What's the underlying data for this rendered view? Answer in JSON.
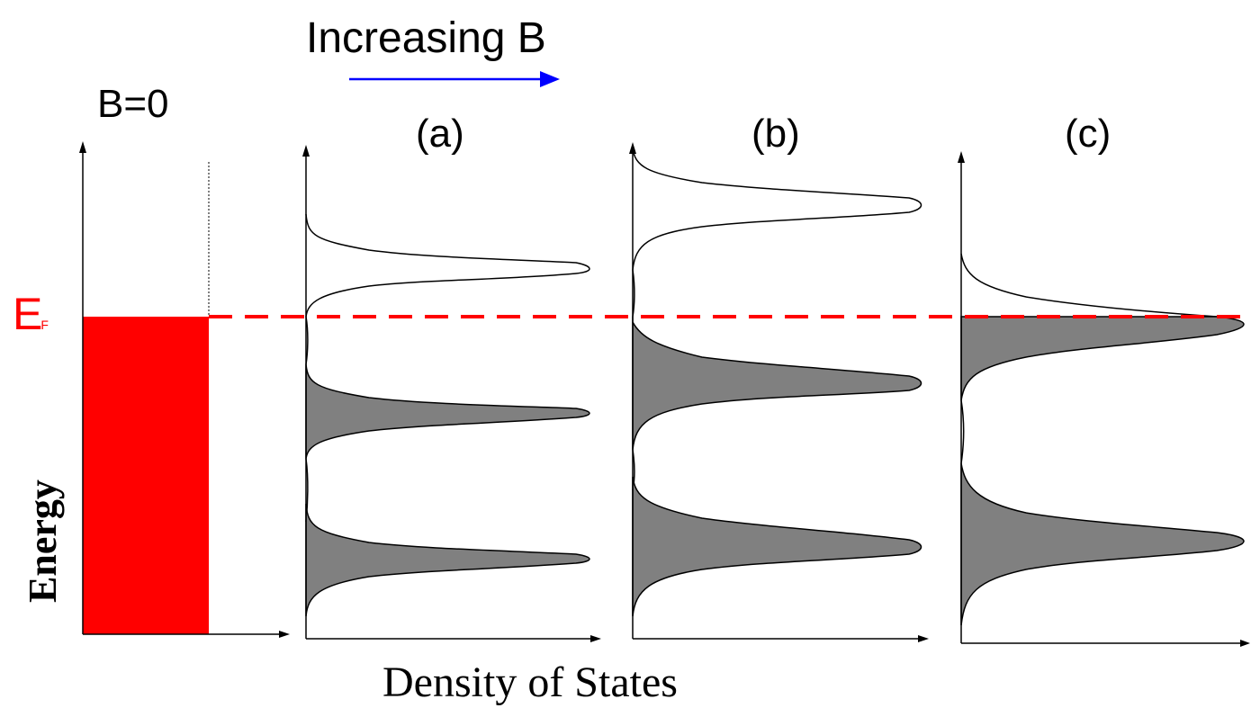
{
  "header": {
    "increasing_label": "Increasing B"
  },
  "panels": {
    "b_zero_label": "B=0",
    "a_label": "(a)",
    "b_label": "(b)",
    "c_label": "(c)"
  },
  "fermi": {
    "label_main": "E",
    "label_sub": "F"
  },
  "axes": {
    "y_label": "Energy",
    "x_label": "Density of States"
  },
  "colors": {
    "fermi_line": "#ff0000",
    "fermi_fill": "#ff0000",
    "arrow": "#0000ff",
    "filled_peak": "#808080",
    "axis": "#000000"
  }
}
